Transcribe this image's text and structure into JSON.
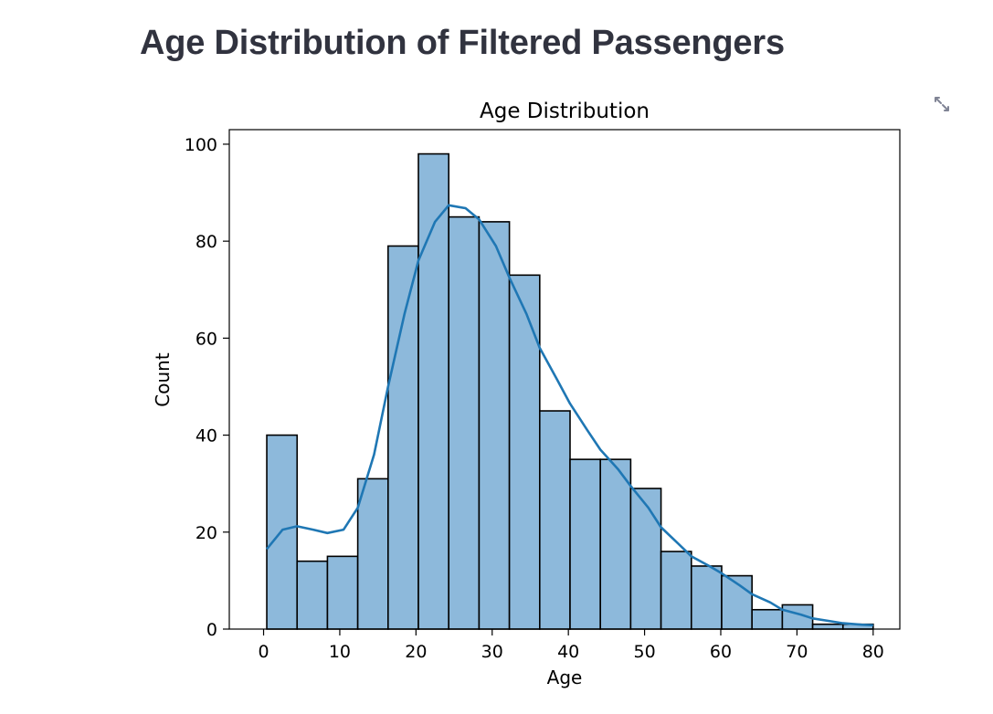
{
  "page": {
    "heading": "Age Distribution of Filtered Passengers"
  },
  "toolbar": {
    "fullscreen_icon": "expand-icon"
  },
  "chart_data": {
    "type": "bar",
    "title": "Age Distribution",
    "xlabel": "Age",
    "ylabel": "Count",
    "xlim": [
      -4.5,
      83.5
    ],
    "ylim": [
      0,
      103
    ],
    "xticks": [
      0,
      10,
      20,
      30,
      40,
      50,
      60,
      70,
      80
    ],
    "yticks": [
      0,
      20,
      40,
      60,
      80,
      100
    ],
    "bin_edges": [
      0.42,
      4.4,
      8.38,
      12.36,
      16.34,
      20.32,
      24.3,
      28.28,
      32.26,
      36.24,
      40.22,
      44.2,
      48.18,
      52.16,
      56.14,
      60.12,
      64.1,
      68.08,
      72.06,
      76.04,
      80.0
    ],
    "values": [
      40,
      14,
      15,
      31,
      79,
      98,
      85,
      84,
      73,
      45,
      35,
      35,
      29,
      16,
      13,
      11,
      4,
      5,
      1,
      1
    ],
    "kde": {
      "x": [
        0.42,
        2.5,
        4.4,
        6.5,
        8.38,
        10.5,
        12.36,
        14.5,
        16.34,
        18.5,
        20.32,
        22.5,
        24.3,
        26.5,
        28.28,
        30.5,
        32.26,
        34.5,
        36.24,
        38.5,
        40.22,
        42.5,
        44.2,
        46.5,
        48.18,
        50.5,
        52.16,
        54.5,
        56.14,
        58.5,
        60.12,
        62.5,
        64.1,
        66.5,
        68.08,
        70.5,
        72.06,
        74.5,
        76.04,
        78.5,
        80.0
      ],
      "y": [
        16.5,
        20.5,
        21.2,
        20.5,
        19.8,
        20.5,
        25.0,
        36.0,
        50.0,
        65.0,
        76.0,
        84.0,
        87.4,
        86.8,
        84.5,
        79.0,
        72.5,
        65.0,
        58.0,
        51.5,
        46.5,
        41.0,
        37.0,
        33.0,
        29.5,
        25.0,
        21.0,
        17.5,
        15.0,
        13.0,
        11.5,
        9.0,
        7.2,
        5.5,
        4.0,
        3.0,
        2.2,
        1.6,
        1.2,
        0.9,
        0.8
      ]
    },
    "bar_color": "#8db9db",
    "line_color": "#1f77b4",
    "edge_color": "#000000",
    "grid": false,
    "legend": "none"
  }
}
